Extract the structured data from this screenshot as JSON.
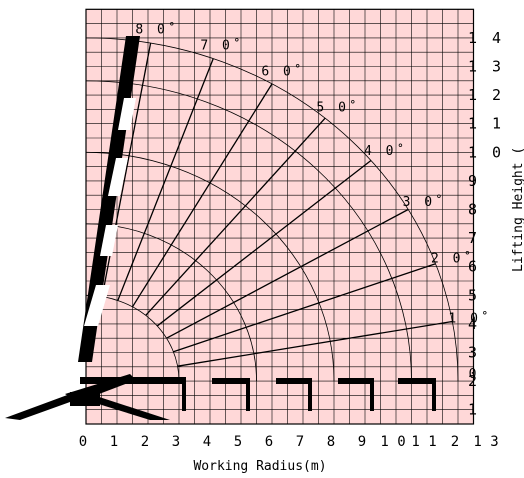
{
  "chart_data": {
    "type": "line",
    "title": "",
    "xlabel": "Working Radius(m)",
    "ylabel": "Lifting Height(m)",
    "ylabel_visible": "Lifting Height (",
    "x_ticks": [
      "0",
      "1",
      "2",
      "3",
      "4",
      "5",
      "6",
      "7",
      "8",
      "9",
      "1 0",
      "1 1",
      "2",
      "1 3"
    ],
    "y_ticks": [
      "1",
      "2",
      "3",
      "4",
      "5",
      "6",
      "7",
      "8",
      "9",
      "1 0",
      "1 1",
      "1 2",
      "1 3",
      "1 4"
    ],
    "xlim": [
      0,
      13
    ],
    "ylim": [
      0,
      14
    ],
    "grid": true,
    "pivot": [
      0,
      1.5
    ],
    "angle_labels": [
      "0",
      "1 0˚",
      "2 0˚",
      "3 0˚",
      "4 0˚",
      "5 0˚",
      "6 0˚",
      "7 0˚",
      "8 0˚"
    ],
    "boom_angles_deg": [
      0,
      10,
      20,
      30,
      40,
      50,
      60,
      70,
      80
    ],
    "boom_lengths_m": [
      3.0,
      5.5,
      8.0,
      10.5,
      12.0
    ],
    "background_color": "#ffd8d8",
    "grid_color": "#000000"
  }
}
